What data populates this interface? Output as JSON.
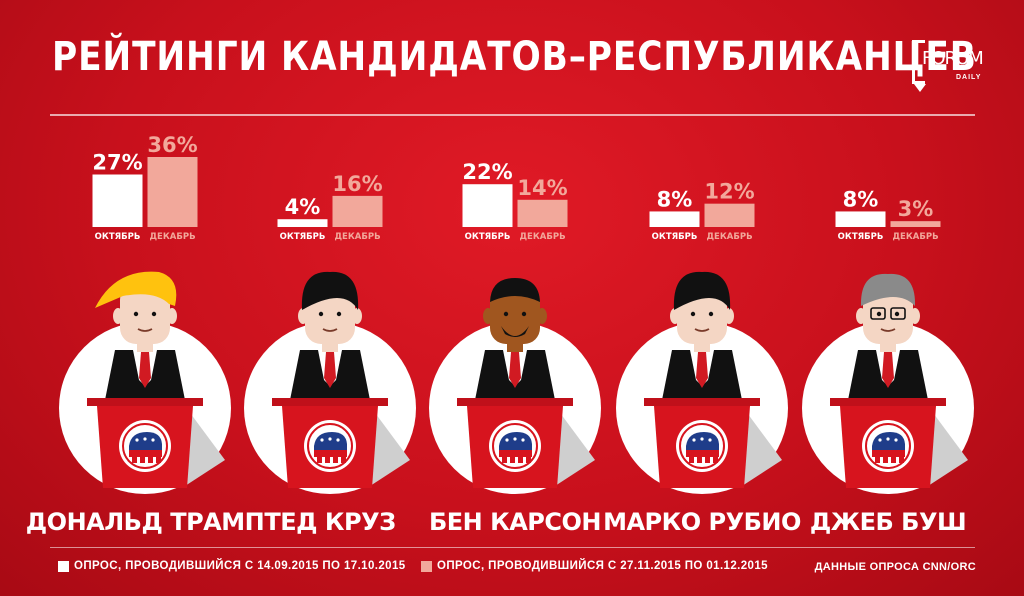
{
  "title": "РЕЙТИНГИ КАНДИДАТОВ–РЕСПУБЛИКАНЦЕВ",
  "logo": {
    "text": "FORUM",
    "sub": "DAILY"
  },
  "colors": {
    "background": "#d0121f",
    "october": "#ffffff",
    "december": "#f2a89b",
    "suit": "#111111",
    "tie": "#d11a22",
    "podium": "#d7141e",
    "podium_top": "#c0101a"
  },
  "chart_data": {
    "type": "bar",
    "title": "РЕЙТИНГИ КАНДИДАТОВ–РЕСПУБЛИКАНЦЕВ",
    "categories": [
      "ДОНАЛЬД ТРАМП",
      "ТЕД КРУЗ",
      "БЕН КАРСОН",
      "МАРКО РУБИО",
      "ДЖЕБ БУШ"
    ],
    "series": [
      {
        "name": "ОКТЯБРЬ",
        "values": [
          27,
          4,
          22,
          8,
          8
        ],
        "labels": [
          "27%",
          "4%",
          "22%",
          "8%",
          "8%"
        ]
      },
      {
        "name": "ДЕКАБРЬ",
        "values": [
          36,
          16,
          14,
          12,
          3
        ],
        "labels": [
          "36%",
          "16%",
          "14%",
          "12%",
          "3%"
        ]
      }
    ],
    "unit": "%",
    "ylim": [
      0,
      36
    ],
    "grid": false
  },
  "candidates": [
    {
      "name": "ДОНАЛЬД ТРАМП",
      "hair": "#ffc20e",
      "hair_style": "blond-swoop",
      "skin": "#f4d6c4"
    },
    {
      "name": "ТЕД КРУЗ",
      "hair": "#111111",
      "hair_style": "dark",
      "skin": "#f4d6c4"
    },
    {
      "name": "БЕН КАРСОН",
      "hair": "#111111",
      "hair_style": "short",
      "skin": "#a0561f"
    },
    {
      "name": "МАРКО РУБИО",
      "hair": "#111111",
      "hair_style": "dark",
      "skin": "#f4d6c4"
    },
    {
      "name": "ДЖЕБ БУШ",
      "hair": "#8a8a8a",
      "hair_style": "gray",
      "skin": "#f4d6c4"
    }
  ],
  "legend": [
    {
      "label": "ОПРОС, ПРОВОДИВШИЙСЯ С 14.09.2015 ПО 17.10.2015",
      "color": "#ffffff"
    },
    {
      "label": "ОПРОС, ПРОВОДИВШИЙСЯ С 27.11.2015 ПО 01.12.2015",
      "color": "#f2a89b"
    }
  ],
  "source": "ДАННЫЕ ОПРОСА CNN/ORC"
}
